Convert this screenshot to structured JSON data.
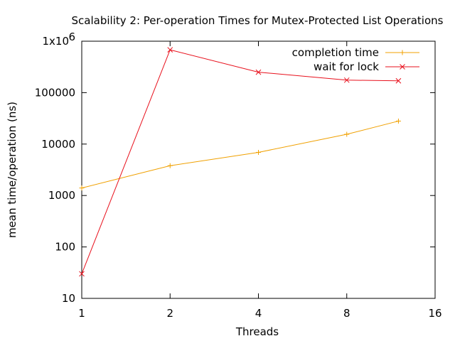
{
  "chart_data": {
    "type": "line",
    "title": "Scalability 2: Per-operation Times for Mutex-Protected List Operations",
    "xlabel": "Threads",
    "ylabel": "mean time/operation (ns)",
    "xscale": "log2",
    "yscale": "log10",
    "xlim": [
      1,
      16
    ],
    "ylim": [
      10,
      1000000
    ],
    "x_ticks": [
      1,
      2,
      4,
      8,
      16
    ],
    "x_tick_labels": [
      "1",
      "2",
      "4",
      "8",
      "16"
    ],
    "y_ticks": [
      10,
      100,
      1000,
      10000,
      100000,
      1000000
    ],
    "y_tick_labels": [
      "10",
      "100",
      "1000",
      "10000",
      "100000",
      "1x10"
    ],
    "y_top_label_exponent": "6",
    "legend_position": "top-right",
    "grid": false,
    "series": [
      {
        "name": "completion time",
        "color": "#f0a000",
        "marker": "plus",
        "x": [
          1,
          2,
          4,
          8,
          12
        ],
        "values": [
          1400,
          3800,
          6900,
          15500,
          28000
        ]
      },
      {
        "name": "wait for lock",
        "color": "#e8101c",
        "marker": "cross",
        "x": [
          1,
          2,
          4,
          8,
          12
        ],
        "values": [
          30,
          680000,
          250000,
          175000,
          170000
        ]
      }
    ]
  }
}
